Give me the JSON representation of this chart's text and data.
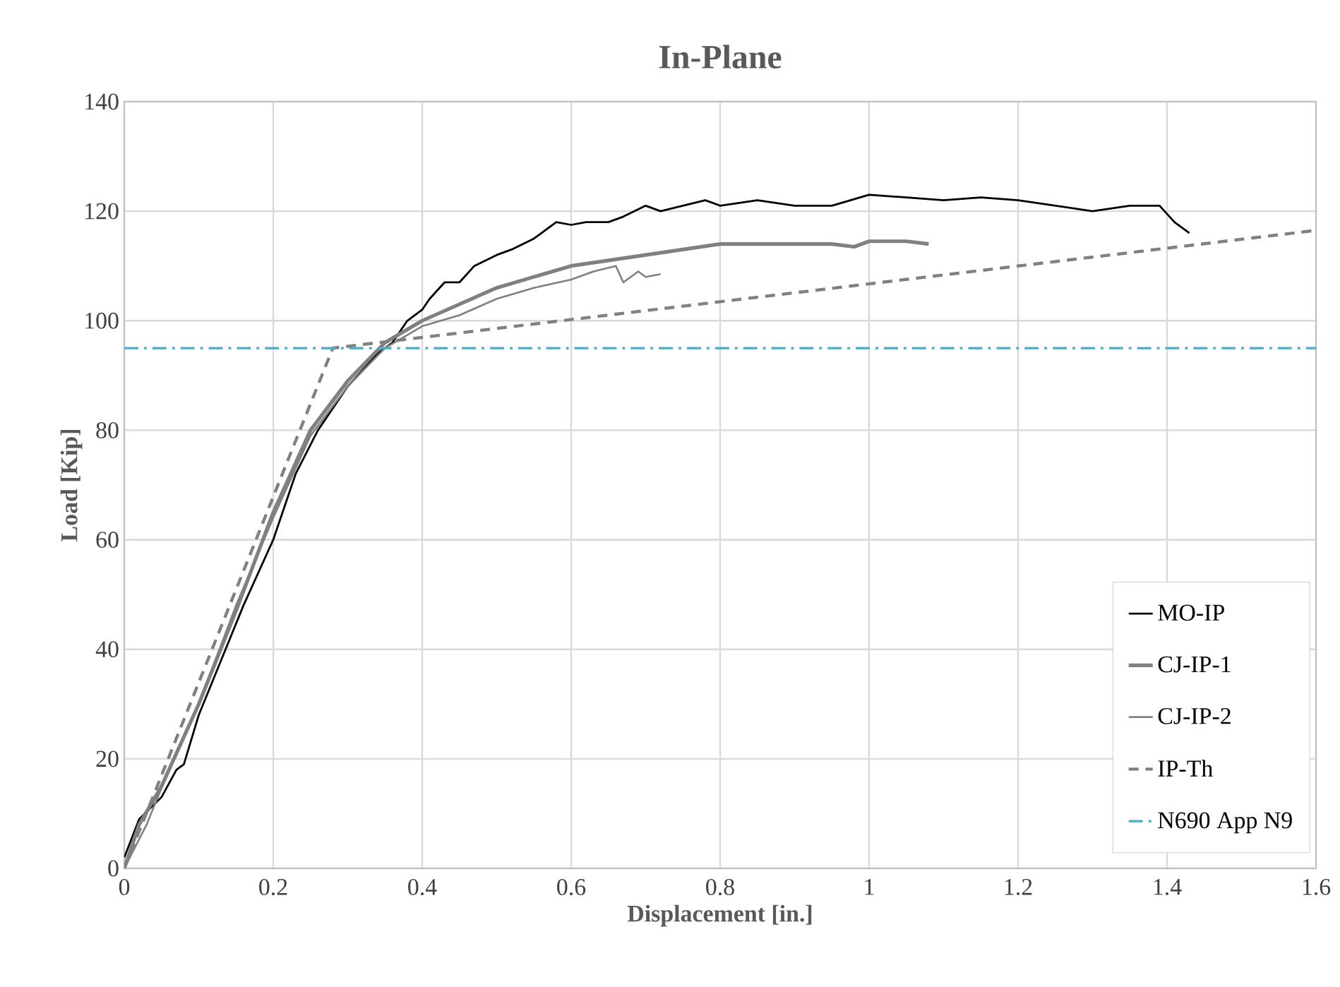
{
  "chart_data": {
    "type": "line",
    "title": "In-Plane",
    "xlabel": "Displacement [in.]",
    "ylabel": "Load [Kip]",
    "xlim": [
      0,
      1.6
    ],
    "ylim": [
      0,
      140
    ],
    "xticks": [
      0,
      0.2,
      0.4,
      0.6,
      0.8,
      1,
      1.2,
      1.4,
      1.6
    ],
    "yticks": [
      0,
      20,
      40,
      60,
      80,
      100,
      120,
      140
    ],
    "grid": true,
    "legend": "bottom right",
    "marker": "none",
    "series": [
      {
        "name": "MO-IP",
        "color": "#000000",
        "line_style": "solid",
        "x": [
          0,
          0.02,
          0.05,
          0.07,
          0.08,
          0.1,
          0.13,
          0.16,
          0.2,
          0.23,
          0.26,
          0.3,
          0.34,
          0.36,
          0.38,
          0.4,
          0.41,
          0.43,
          0.45,
          0.47,
          0.5,
          0.52,
          0.55,
          0.58,
          0.6,
          0.62,
          0.65,
          0.67,
          0.7,
          0.72,
          0.75,
          0.78,
          0.8,
          0.85,
          0.9,
          0.95,
          1.0,
          1.05,
          1.1,
          1.15,
          1.2,
          1.25,
          1.3,
          1.35,
          1.39,
          1.41,
          1.43
        ],
        "values": [
          2,
          9,
          13,
          18,
          19,
          28,
          38,
          48,
          60,
          72,
          80,
          88,
          94,
          96,
          100,
          102,
          104,
          107,
          107,
          110,
          112,
          113,
          115,
          118,
          117.5,
          118,
          118,
          119,
          121,
          120,
          121,
          122,
          121,
          122,
          121,
          121,
          123,
          122.5,
          122,
          122.5,
          122,
          121,
          120,
          121,
          121,
          118,
          116
        ]
      },
      {
        "name": "CJ-IP-1",
        "color": "#808080",
        "line_style": "solid",
        "x": [
          0,
          0.02,
          0.05,
          0.1,
          0.15,
          0.2,
          0.25,
          0.3,
          0.35,
          0.4,
          0.45,
          0.5,
          0.55,
          0.6,
          0.65,
          0.7,
          0.75,
          0.8,
          0.85,
          0.9,
          0.95,
          0.98,
          1.0,
          1.05,
          1.08
        ],
        "values": [
          0,
          8,
          15,
          30,
          47,
          65,
          80,
          89,
          96,
          100,
          103,
          106,
          108,
          110,
          111,
          112,
          113,
          114,
          114,
          114,
          114,
          113.5,
          114.5,
          114.5,
          114
        ]
      },
      {
        "name": "CJ-IP-2",
        "color": "#808080",
        "line_style": "solid",
        "x": [
          0,
          0.03,
          0.06,
          0.1,
          0.15,
          0.2,
          0.25,
          0.3,
          0.35,
          0.4,
          0.45,
          0.5,
          0.55,
          0.6,
          0.63,
          0.66,
          0.67,
          0.69,
          0.7,
          0.72
        ],
        "values": [
          0,
          8,
          18,
          30,
          48,
          64,
          79,
          88,
          95,
          99,
          101,
          104,
          106,
          107.5,
          109,
          110,
          107,
          109,
          108,
          108.5
        ]
      },
      {
        "name": "IP-Th",
        "color": "#808080",
        "line_style": "dashed",
        "x": [
          0,
          0.28,
          1.6
        ],
        "values": [
          0,
          95,
          116.5
        ]
      }
    ],
    "ref_lines": [
      {
        "axis": "y",
        "value": 95,
        "label": "N690 App N9",
        "color": "#4bacc6",
        "line_style": "dashdotted"
      }
    ]
  }
}
